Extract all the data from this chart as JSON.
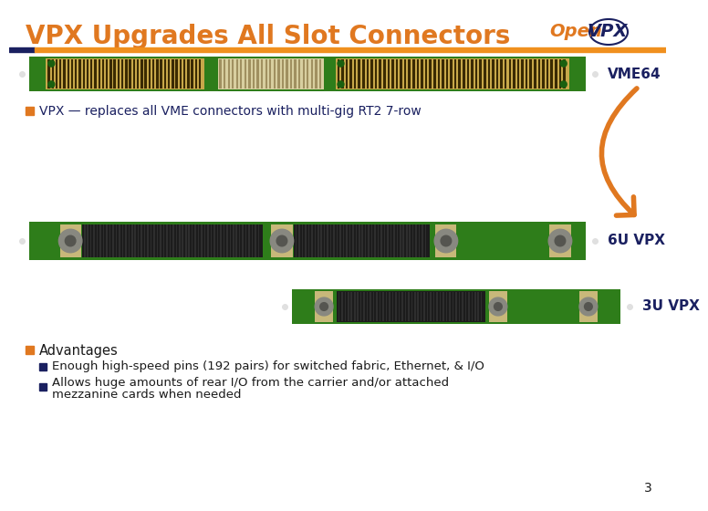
{
  "title": "VPX Upgrades All Slot Connectors",
  "title_color": "#E07820",
  "title_fontsize": 20,
  "bg_color": "#FFFFFF",
  "header_bar_color1": "#1A2060",
  "header_bar_color2": "#F0901E",
  "logo_open_color": "#E07820",
  "logo_vpx_color": "#1A2060",
  "vme64_label": "VME64",
  "label_color": "#1A2060",
  "bullet1_text": "VPX — replaces all VME connectors with multi-gig RT2 7-row",
  "bullet_square_color": "#E07820",
  "connector_green": "#2E7D1A",
  "connector_dark": "#1A1A1A",
  "connector_gold": "#C8A84A",
  "connector_tan": "#C8B87A",
  "label_6u": "6U VPX",
  "label_3u": "3U VPX",
  "adv_title": "Advantages",
  "adv_bullet1": "Enough high-speed pins (192 pairs) for switched fabric, Ethernet, & I/O",
  "adv_bullet2_line1": "Allows huge amounts of rear I/O from the carrier and/or attached",
  "adv_bullet2_line2": "mezzanine cards when needed",
  "text_color": "#1A1A1A",
  "page_number": "3",
  "arrow_color": "#E07820",
  "dot_color": "#E0E0E0"
}
